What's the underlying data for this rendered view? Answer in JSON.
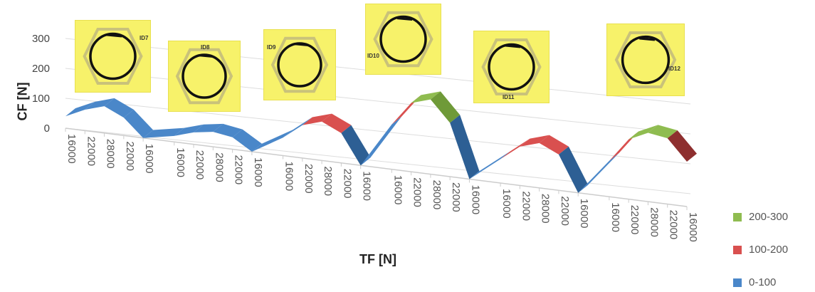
{
  "chart_data": {
    "type": "surface",
    "ylabel": "CF [N]",
    "xlabel": "TF [N]",
    "ylim": [
      0,
      300
    ],
    "yticks": [
      "0",
      "100",
      "200",
      "300"
    ],
    "groups": [
      {
        "id": "ID7",
        "categories": [
          "16000",
          "22000",
          "28000",
          "22000",
          "16000"
        ],
        "values": [
          40,
          70,
          90,
          60,
          0
        ]
      },
      {
        "id": "ID8",
        "categories": [
          "16000",
          "22000",
          "28000",
          "22000",
          "16000"
        ],
        "values": [
          20,
          40,
          50,
          40,
          0
        ]
      },
      {
        "id": "ID9",
        "categories": [
          "16000",
          "22000",
          "28000",
          "22000",
          "16000"
        ],
        "values": [
          60,
          110,
          130,
          100,
          0
        ]
      },
      {
        "id": "ID10",
        "categories": [
          "16000",
          "22000",
          "28000",
          "22000",
          "16000"
        ],
        "values": [
          150,
          230,
          250,
          180,
          0
        ]
      },
      {
        "id": "ID11",
        "categories": [
          "16000",
          "22000",
          "28000",
          "22000",
          "16000"
        ],
        "values": [
          80,
          130,
          150,
          120,
          0
        ]
      },
      {
        "id": "ID12",
        "categories": [
          "16000",
          "22000",
          "28000",
          "22000",
          "16000"
        ],
        "values": [
          120,
          200,
          230,
          220,
          150
        ]
      }
    ],
    "legend": [
      {
        "label": "200-300",
        "color": "#8fbc50"
      },
      {
        "label": "100-200",
        "color": "#d9504f"
      },
      {
        "label": "0-100",
        "color": "#4a87c9"
      }
    ],
    "legend_position": "right"
  }
}
